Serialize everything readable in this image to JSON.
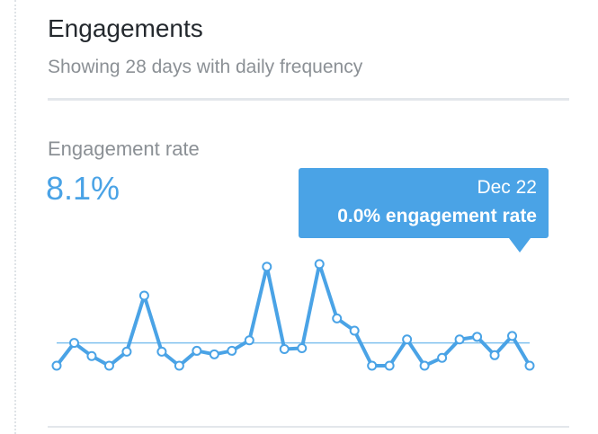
{
  "card": {
    "title": "Engagements",
    "subtitle": "Showing 28 days with daily frequency",
    "metric_label": "Engagement rate",
    "metric_value": "8.1%"
  },
  "tooltip": {
    "date": "Dec 22",
    "value": "0.0% engagement rate"
  },
  "colors": {
    "accent": "#4aa3e6",
    "line": "#4aa3e6",
    "average_line": "#7fc0ee",
    "divider": "#e3e7eb",
    "title_text": "#24292e",
    "muted_text": "#8b9095"
  },
  "chart_data": {
    "type": "line",
    "series": [
      {
        "values": [
          0.0,
          2.6,
          1.1,
          0.0,
          1.6,
          8.0,
          1.6,
          0.0,
          1.7,
          1.3,
          1.7,
          2.9,
          11.3,
          1.9,
          2.0,
          11.6,
          5.4,
          4.0,
          0.0,
          0.0,
          3.0,
          0.0,
          0.9,
          3.0,
          3.3,
          1.2,
          3.4,
          0.0
        ]
      }
    ],
    "average": 2.6,
    "ylim": [
      0,
      12
    ],
    "grid": false,
    "tooltip_index": 27
  }
}
